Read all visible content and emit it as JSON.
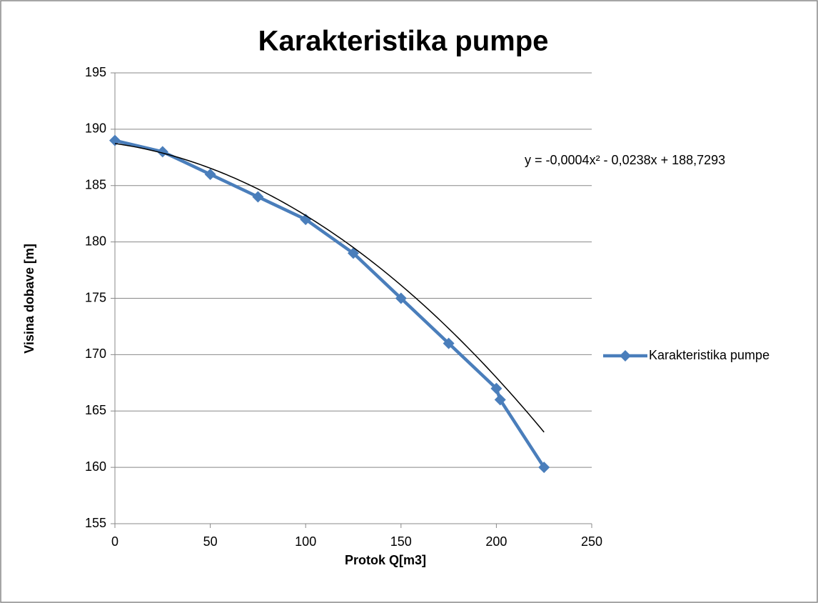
{
  "chart_data": {
    "type": "scatter",
    "title": "Karakteristika pumpe",
    "x_label": "Protok Q[m3]",
    "y_label": "Visina dobave [m]",
    "x": [
      0,
      25,
      50,
      75,
      100,
      125,
      150,
      175,
      200,
      202,
      225
    ],
    "series": [
      {
        "name": "Karakteristika pumpe",
        "color": "#4a7ebb",
        "values": [
          189,
          188,
          186,
          184,
          182,
          179,
          175,
          171,
          167,
          166,
          160
        ]
      }
    ],
    "trendline": {
      "type": "polynomial",
      "color": "#000000",
      "coefficients": [
        -0.0004,
        -0.0238,
        188.7293
      ],
      "label": "y = -0,0004x² - 0,0238x + 188,7293"
    },
    "xlim": [
      0,
      250
    ],
    "xticks": [
      0,
      50,
      100,
      150,
      200,
      250
    ],
    "ylim": [
      155,
      195
    ],
    "yticks": [
      155,
      160,
      165,
      170,
      175,
      180,
      185,
      190,
      195
    ],
    "grid": true,
    "legend": "right"
  }
}
